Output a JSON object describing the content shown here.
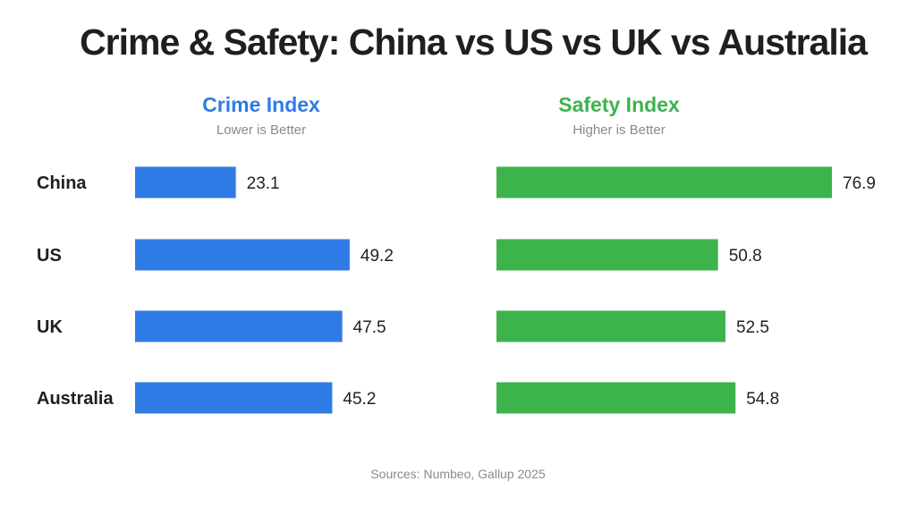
{
  "title": "Crime & Safety: China vs US vs UK vs Australia",
  "source": "Sources: Numbeo, Gallup 2025",
  "chart_data": [
    {
      "type": "bar",
      "orientation": "horizontal",
      "title": "Crime Index",
      "subtitle": "Lower is Better",
      "categories": [
        "China",
        "US",
        "UK",
        "Australia"
      ],
      "values": [
        23.1,
        49.2,
        47.5,
        45.2
      ],
      "color": "#2f7be5",
      "xlim": [
        0,
        76.9
      ],
      "grid": false,
      "data_labels": true
    },
    {
      "type": "bar",
      "orientation": "horizontal",
      "title": "Safety Index",
      "subtitle": "Higher is Better",
      "categories": [
        "China",
        "US",
        "UK",
        "Australia"
      ],
      "values": [
        76.9,
        50.8,
        52.5,
        54.8
      ],
      "color": "#3db34c",
      "xlim": [
        0,
        76.9
      ],
      "grid": false,
      "data_labels": true
    }
  ],
  "colors": {
    "crime_title": "#2f7be5",
    "safety_title": "#3db34c"
  }
}
